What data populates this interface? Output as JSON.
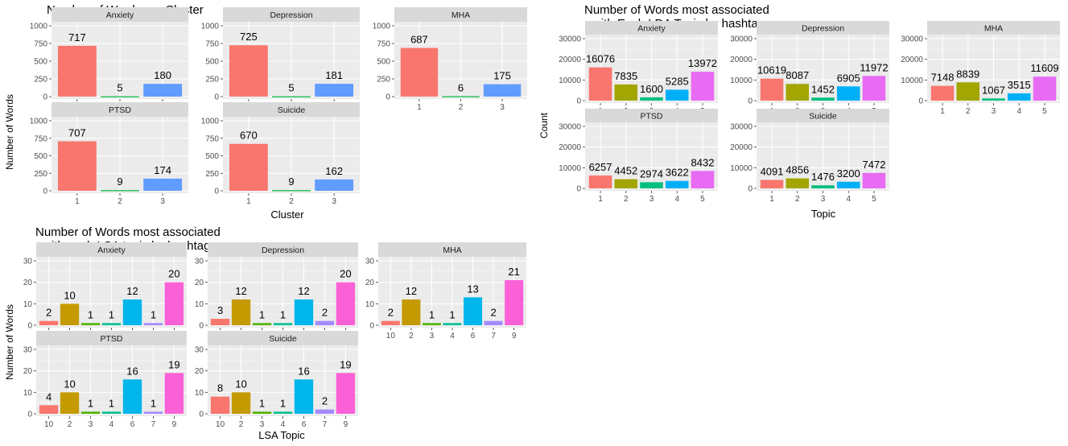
{
  "chart_data": [
    {
      "type": "bar",
      "title": "Number of Words per Cluster",
      "xlabel": "Cluster",
      "ylabel": "Number of Words",
      "ylim": [
        0,
        1000
      ],
      "yticks": [
        0,
        250,
        500,
        750,
        1000
      ],
      "grid": true,
      "categories": [
        "1",
        "2",
        "3"
      ],
      "colors": [
        "#F8766D",
        "#00BA38",
        "#619CFF"
      ],
      "facets": [
        {
          "name": "Anxiety",
          "values": [
            717,
            5,
            180
          ]
        },
        {
          "name": "Depression",
          "values": [
            725,
            5,
            181
          ]
        },
        {
          "name": "MHA",
          "values": [
            687,
            6,
            175
          ]
        },
        {
          "name": "PTSD",
          "values": [
            707,
            9,
            174
          ]
        },
        {
          "name": "Suicide",
          "values": [
            670,
            9,
            162
          ]
        }
      ]
    },
    {
      "type": "bar",
      "title": "Number of Words most associated\n with Each LDA Topic by hashtag",
      "xlabel": "Topic",
      "ylabel": "Count",
      "ylim": [
        0,
        30000
      ],
      "yticks": [
        0,
        10000,
        20000,
        30000
      ],
      "grid": true,
      "categories": [
        "1",
        "2",
        "3",
        "4",
        "5"
      ],
      "colors": [
        "#F8766D",
        "#A3A500",
        "#00BF7D",
        "#00B0F6",
        "#E76BF3"
      ],
      "facets": [
        {
          "name": "Anxiety",
          "values": [
            16076,
            7835,
            1600,
            5285,
            13972
          ]
        },
        {
          "name": "Depression",
          "values": [
            10619,
            8087,
            1452,
            6905,
            11972
          ]
        },
        {
          "name": "MHA",
          "values": [
            7148,
            8839,
            1067,
            3515,
            11609
          ]
        },
        {
          "name": "PTSD",
          "values": [
            6257,
            4452,
            2974,
            3622,
            8432
          ]
        },
        {
          "name": "Suicide",
          "values": [
            4091,
            4856,
            1476,
            3200,
            7472
          ]
        }
      ]
    },
    {
      "type": "bar",
      "title": "Number of Words most associated\n with each LSA topic by hashtag",
      "xlabel": "LSA Topic",
      "ylabel": "Number of Words",
      "ylim": [
        0,
        30
      ],
      "yticks": [
        0,
        10,
        20,
        30
      ],
      "grid": true,
      "categories": [
        "10",
        "2",
        "3",
        "4",
        "6",
        "7",
        "9"
      ],
      "colors": [
        "#F8766D",
        "#C49A00",
        "#53B400",
        "#00C094",
        "#00B6EB",
        "#A58AFF",
        "#FB61D7"
      ],
      "facets": [
        {
          "name": "Anxiety",
          "values": [
            2,
            10,
            1,
            1,
            12,
            1,
            20
          ]
        },
        {
          "name": "Depression",
          "values": [
            3,
            12,
            1,
            1,
            12,
            2,
            20
          ]
        },
        {
          "name": "MHA",
          "values": [
            2,
            12,
            1,
            1,
            13,
            2,
            21
          ]
        },
        {
          "name": "PTSD",
          "values": [
            4,
            10,
            1,
            1,
            16,
            1,
            19
          ]
        },
        {
          "name": "Suicide",
          "values": [
            8,
            10,
            1,
            1,
            16,
            2,
            19
          ]
        }
      ]
    }
  ]
}
